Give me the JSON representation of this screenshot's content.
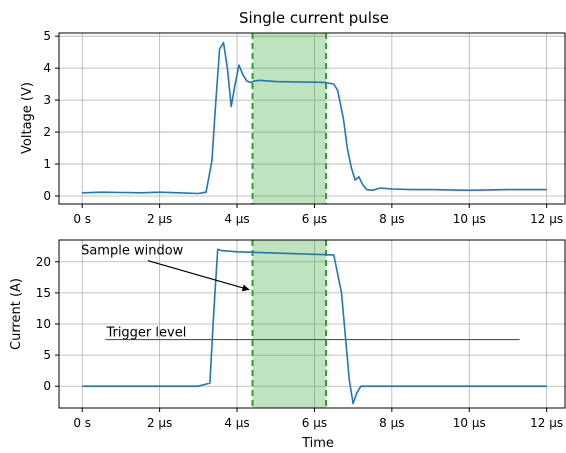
{
  "chart_data": {
    "title": "Single current pulse",
    "x_tick_labels": [
      "0 s",
      "2 µs",
      "4 µs",
      "6 µs",
      "8 µs",
      "10 µs",
      "12 µs"
    ],
    "x_tick_values": [
      0,
      2,
      4,
      6,
      8,
      10,
      12
    ],
    "xlim": [
      -0.6,
      12.5
    ],
    "grid": true,
    "line_color": "#1f77b4",
    "window_fill_color": "#2ca02c",
    "window_line_color": "#2ca02c",
    "annotation_color": "#555555",
    "sample_window": {
      "start": 4.4,
      "end": 6.3
    },
    "subplots": [
      {
        "type": "line",
        "xlabel": "",
        "ylabel": "Voltage (V)",
        "ylim": [
          -0.25,
          5.1
        ],
        "y_tick_values": [
          0,
          1,
          2,
          3,
          4,
          5
        ],
        "y_tick_labels": [
          "0",
          "1",
          "2",
          "3",
          "4",
          "5"
        ],
        "series": [
          {
            "x": [
              0,
              0.5,
              1,
              1.5,
              2,
              2.5,
              3,
              3.2,
              3.35,
              3.45,
              3.55,
              3.65,
              3.75,
              3.85,
              3.95,
              4.05,
              4.15,
              4.25,
              4.35,
              4.45,
              4.6,
              4.8,
              5.0,
              5.5,
              6.0,
              6.3,
              6.5,
              6.6,
              6.75,
              6.85,
              6.95,
              7.05,
              7.15,
              7.25,
              7.35,
              7.5,
              7.7,
              8.0,
              8.5,
              9,
              10,
              11,
              12
            ],
            "y": [
              0.1,
              0.12,
              0.11,
              0.1,
              0.12,
              0.1,
              0.08,
              0.12,
              1.1,
              2.9,
              4.6,
              4.8,
              4.0,
              2.8,
              3.5,
              4.1,
              3.8,
              3.6,
              3.55,
              3.6,
              3.62,
              3.6,
              3.58,
              3.57,
              3.56,
              3.55,
              3.5,
              3.3,
              2.4,
              1.5,
              0.9,
              0.5,
              0.6,
              0.35,
              0.2,
              0.18,
              0.25,
              0.22,
              0.2,
              0.2,
              0.18,
              0.2,
              0.2
            ]
          }
        ]
      },
      {
        "type": "line",
        "xlabel": "Time",
        "ylabel": "Current (A)",
        "ylim": [
          -3.5,
          23.5
        ],
        "y_tick_values": [
          0,
          5,
          10,
          15,
          20
        ],
        "y_tick_labels": [
          "0",
          "5",
          "10",
          "15",
          "20"
        ],
        "series": [
          {
            "x": [
              0,
              1,
              2,
              3,
              3.3,
              3.4,
              3.5,
              3.6,
              4.0,
              4.5,
              5.0,
              6.0,
              6.5,
              6.7,
              6.8,
              6.9,
              7.0,
              7.1,
              7.2,
              7.5,
              8,
              9,
              10,
              11,
              12
            ],
            "y": [
              0,
              0,
              0,
              0,
              0.5,
              12,
              22,
              21.8,
              21.6,
              21.5,
              21.4,
              21.2,
              21.1,
              15,
              8,
              1,
              -2.8,
              -1,
              0,
              0,
              0,
              0,
              0,
              0,
              0
            ]
          }
        ],
        "trigger_level": {
          "value": 7.5,
          "x_start": 0.6,
          "x_end": 11.3,
          "label": "Trigger level"
        },
        "sample_window_label": {
          "text": "Sample window",
          "x": 0.1,
          "y": 20.5,
          "arrow_to_x": 4.4,
          "arrow_to_y": 15.5
        }
      }
    ]
  }
}
